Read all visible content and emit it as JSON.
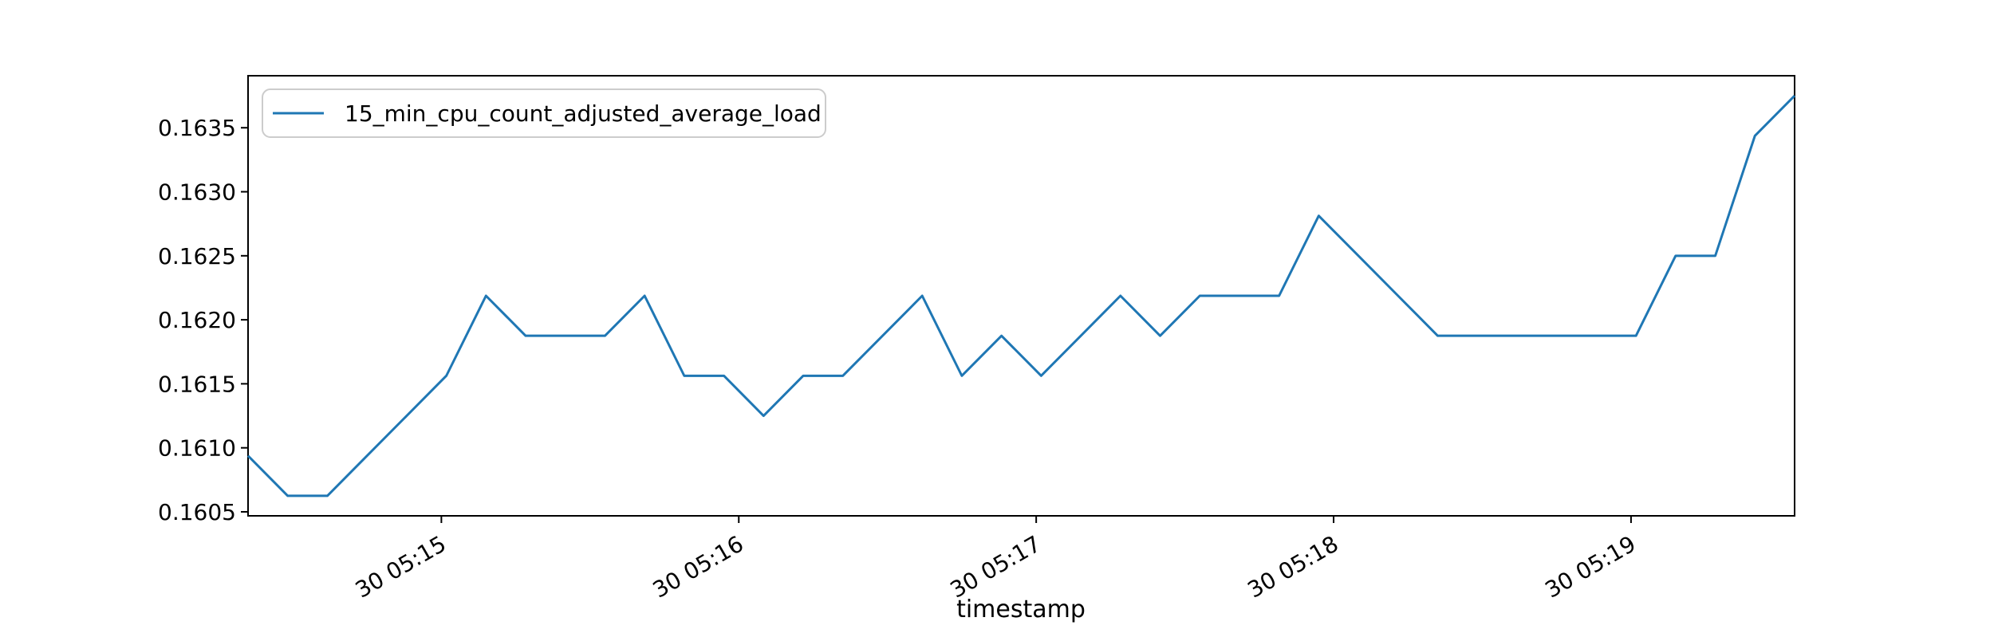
{
  "figure": {
    "background_color": "#ffffff",
    "frame_color": "#000000"
  },
  "chart_data": {
    "type": "line",
    "title": "",
    "xlabel": "timestamp",
    "ylabel": "",
    "grid": false,
    "legend": {
      "position": "upper left",
      "label": "15_min_cpu_count_adjusted_average_load",
      "border_color": "#cccccc"
    },
    "line_color": "#1f77b4",
    "sample_interval_seconds": 8,
    "xlim_seconds": [
      0,
      312
    ],
    "ylim": [
      0.16046875,
      0.16390625
    ],
    "x_ticks": [
      {
        "label": "30 05:15",
        "t": 39
      },
      {
        "label": "30 05:16",
        "t": 99
      },
      {
        "label": "30 05:17",
        "t": 159
      },
      {
        "label": "30 05:18",
        "t": 219
      },
      {
        "label": "30 05:19",
        "t": 279
      }
    ],
    "y_ticks": [
      {
        "label": "0.1605",
        "value": 0.1605
      },
      {
        "label": "0.1610",
        "value": 0.161
      },
      {
        "label": "0.1615",
        "value": 0.1615
      },
      {
        "label": "0.1620",
        "value": 0.162
      },
      {
        "label": "0.1625",
        "value": 0.1625
      },
      {
        "label": "0.1630",
        "value": 0.163
      },
      {
        "label": "0.1635",
        "value": 0.1635
      }
    ],
    "series": [
      {
        "name": "15_min_cpu_count_adjusted_average_load",
        "color": "#1f77b4",
        "x_seconds": [
          0,
          8,
          16,
          24,
          32,
          40,
          48,
          56,
          64,
          72,
          80,
          88,
          96,
          104,
          112,
          120,
          128,
          136,
          144,
          152,
          160,
          168,
          176,
          184,
          192,
          200,
          208,
          216,
          224,
          232,
          240,
          248,
          256,
          264,
          272,
          280,
          288,
          296,
          304,
          312
        ],
        "values": [
          0.1609375,
          0.160625,
          0.160625,
          0.1609375,
          0.16125,
          0.1615625,
          0.1621875,
          0.161875,
          0.161875,
          0.161875,
          0.1621875,
          0.1615625,
          0.1615625,
          0.16125,
          0.1615625,
          0.1615625,
          0.161875,
          0.1621875,
          0.1615625,
          0.161875,
          0.1615625,
          0.161875,
          0.1621875,
          0.161875,
          0.1621875,
          0.1621875,
          0.1621875,
          0.1628125,
          0.1625,
          0.1621875,
          0.161875,
          0.161875,
          0.161875,
          0.161875,
          0.161875,
          0.161875,
          0.1625,
          0.1625,
          0.1634375,
          0.16375
        ]
      }
    ]
  }
}
